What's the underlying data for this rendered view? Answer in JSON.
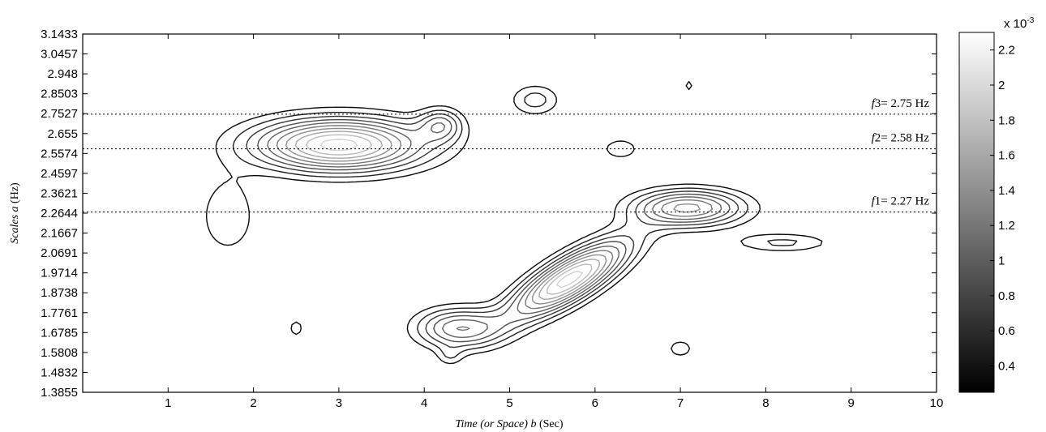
{
  "chart_data": {
    "type": "heatmap",
    "subtype": "contour",
    "xlabel_parts": [
      "Time (or Space) ",
      "b",
      " (Sec)"
    ],
    "ylabel_parts": [
      "Scales ",
      "a",
      " (Hz)"
    ],
    "xlim": [
      0,
      10
    ],
    "ylim": [
      1.3855,
      3.1433
    ],
    "x_ticks": [
      "1",
      "2",
      "3",
      "4",
      "5",
      "6",
      "7",
      "8",
      "9",
      "10"
    ],
    "y_ticks": [
      "3.1433",
      "3.0457",
      "2.948",
      "2.8503",
      "2.7527",
      "2.655",
      "2.5574",
      "2.4597",
      "2.3621",
      "2.2644",
      "2.1667",
      "2.0691",
      "1.9714",
      "1.8738",
      "1.7761",
      "1.6785",
      "1.5808",
      "1.4832",
      "1.3855"
    ],
    "colormap": "gray",
    "colorbar": {
      "exponent_base": "x 10",
      "exponent_power": "-3",
      "range": [
        0.25,
        2.3
      ],
      "ticks": [
        "2.2",
        "2",
        "1.8",
        "1.6",
        "1.4",
        "1.2",
        "1",
        "0.8",
        "0.6",
        "0.4"
      ]
    },
    "reference_lines": [
      {
        "var": "f",
        "idx": "3",
        "value": 2.75,
        "label": "= 2.75  Hz"
      },
      {
        "var": "f",
        "idx": "2",
        "value": 2.58,
        "label": "= 2.58  Hz"
      },
      {
        "var": "f",
        "idx": "1",
        "value": 2.27,
        "label": "= 2.27 Hz"
      }
    ],
    "contour_levels": [
      0.3,
      0.5,
      0.7,
      0.9,
      1.1,
      1.3,
      1.5,
      1.7,
      1.9,
      2.1
    ],
    "peaks": [
      {
        "x": 3.0,
        "y": 2.6,
        "amp": 2.2,
        "sx": 1.0,
        "sy": 0.13
      },
      {
        "x": 5.7,
        "y": 1.94,
        "amp": 2.2,
        "sx": 0.7,
        "sy": 0.12,
        "tilt": 0.22
      },
      {
        "x": 7.1,
        "y": 2.29,
        "amp": 1.55,
        "sx": 0.65,
        "sy": 0.09
      },
      {
        "x": 4.4,
        "y": 1.7,
        "amp": 1.25,
        "sx": 0.5,
        "sy": 0.1
      },
      {
        "x": 4.2,
        "y": 2.7,
        "amp": 0.85,
        "sx": 0.25,
        "sy": 0.08
      },
      {
        "x": 5.3,
        "y": 2.82,
        "amp": 0.6,
        "sx": 0.3,
        "sy": 0.08
      },
      {
        "x": 6.3,
        "y": 2.58,
        "amp": 0.45,
        "sx": 0.25,
        "sy": 0.06
      },
      {
        "x": 8.2,
        "y": 2.12,
        "amp": 0.55,
        "sx": 0.6,
        "sy": 0.05
      },
      {
        "x": 1.7,
        "y": 2.25,
        "amp": 0.5,
        "sx": 0.35,
        "sy": 0.2
      },
      {
        "x": 2.5,
        "y": 1.7,
        "amp": 0.35,
        "sx": 0.15,
        "sy": 0.08
      },
      {
        "x": 7.0,
        "y": 1.6,
        "amp": 0.4,
        "sx": 0.2,
        "sy": 0.06
      },
      {
        "x": 7.1,
        "y": 2.89,
        "amp": 0.35,
        "sx": 0.1,
        "sy": 0.05
      },
      {
        "x": 4.3,
        "y": 1.56,
        "amp": 0.35,
        "sx": 0.15,
        "sy": 0.05
      }
    ]
  }
}
